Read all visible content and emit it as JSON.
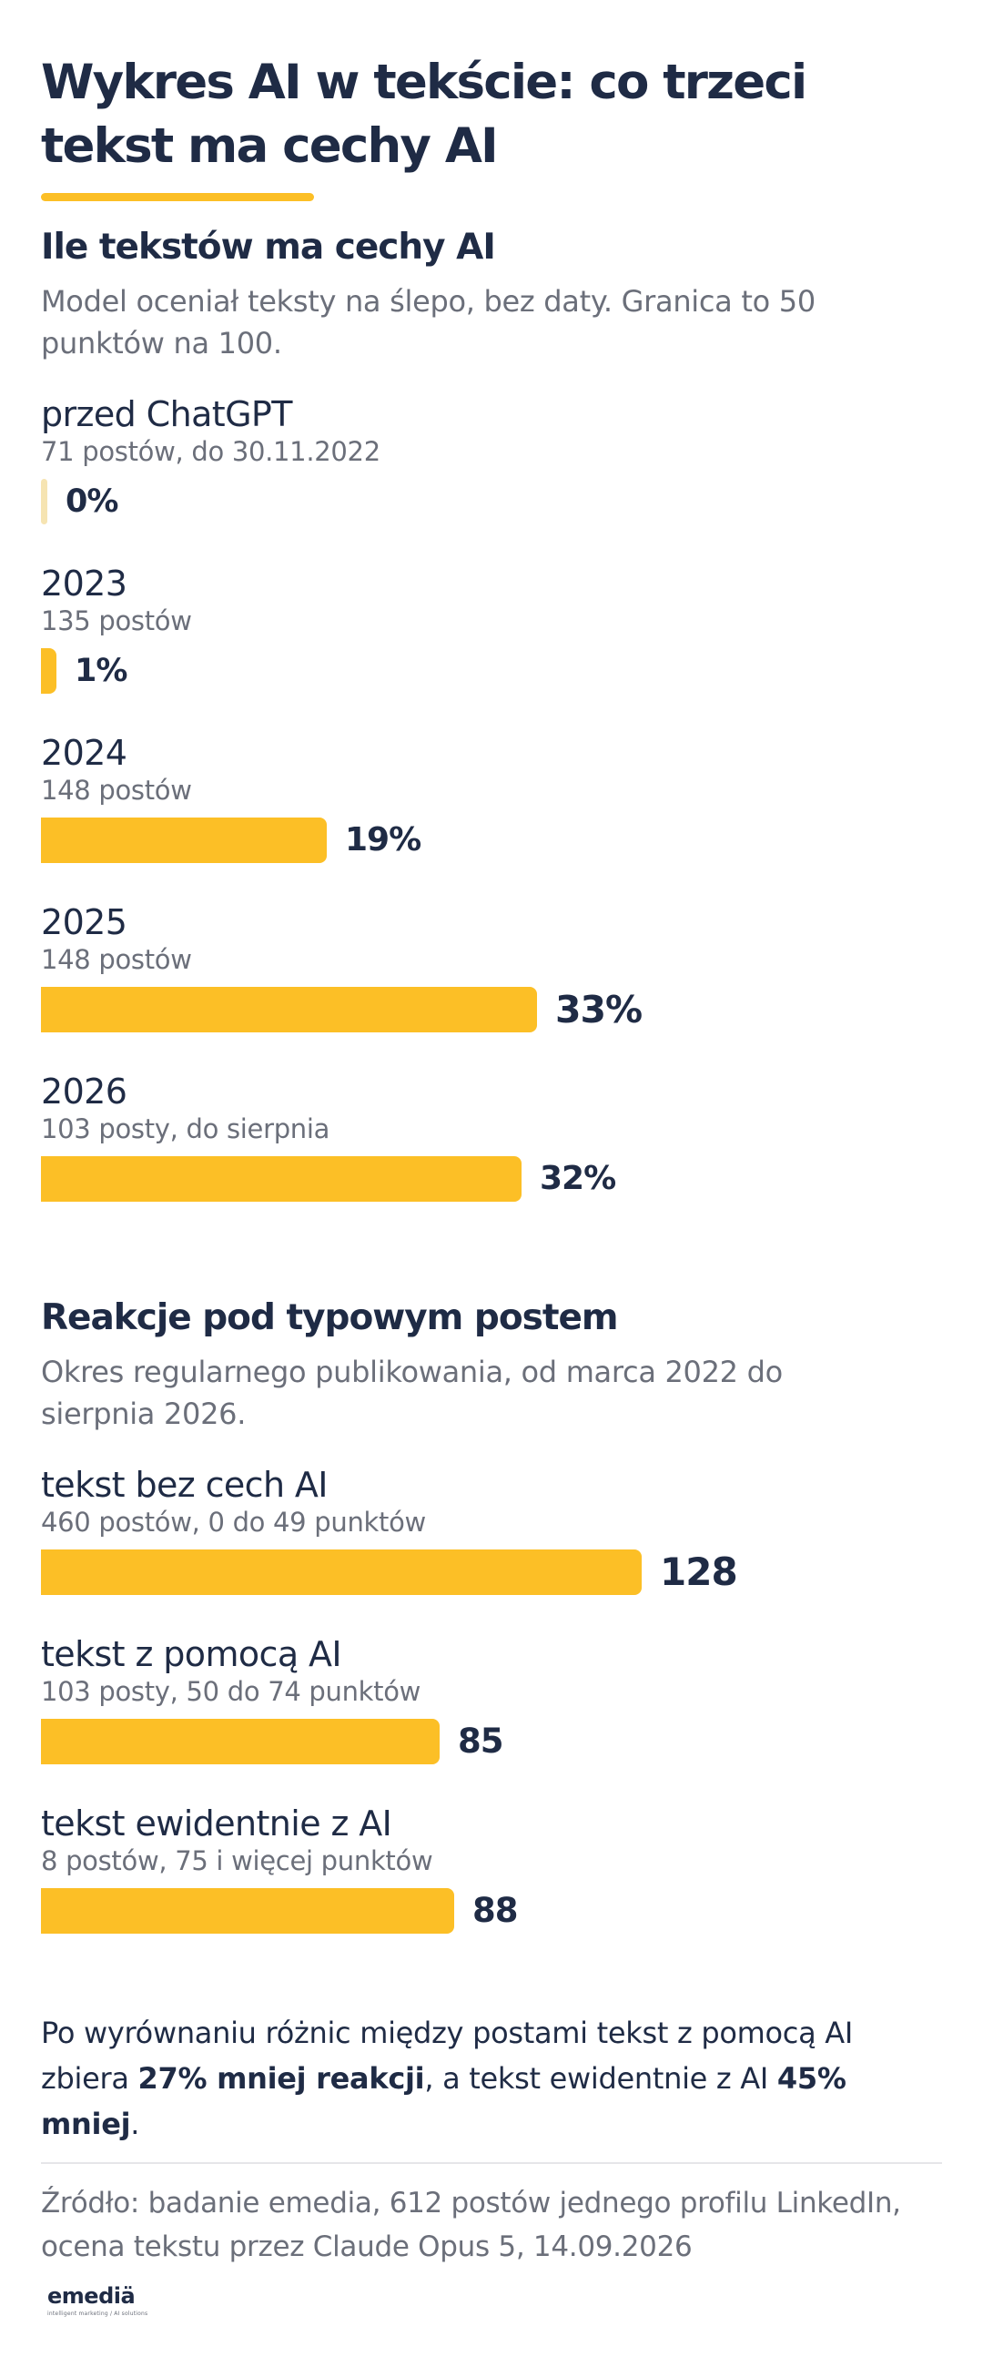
{
  "title": "Wykres AI w tekście: co trzeci tekst ma cechy AI",
  "colors": {
    "bar": "#fcbf26",
    "bar_zero": "#f6e4b2",
    "text": "#1f2b45",
    "muted": "#6b6f7a"
  },
  "chart_data": [
    {
      "type": "bar",
      "orientation": "horizontal",
      "title": "Ile tekstów ma cechy AI",
      "subtitle": "Model oceniał teksty na ślepo, bez daty. Granica to 50 punktów na 100.",
      "categories": [
        "przed ChatGPT",
        "2023",
        "2024",
        "2025",
        "2026"
      ],
      "category_notes": [
        "71 postów, do 30.11.2022",
        "135 postów",
        "148 postów",
        "148 postów",
        "103 posty, do sierpnia"
      ],
      "values": [
        0,
        1,
        19,
        33,
        32
      ],
      "value_labels": [
        "0%",
        "1%",
        "19%",
        "33%",
        "32%"
      ],
      "xlim": [
        0,
        60
      ],
      "grid": false
    },
    {
      "type": "bar",
      "orientation": "horizontal",
      "title": "Reakcje pod typowym postem",
      "subtitle": "Okres regularnego publikowania, od marca 2022 do sierpnia 2026.",
      "categories": [
        "tekst bez cech AI",
        "tekst z pomocą AI",
        "tekst ewidentnie z AI"
      ],
      "category_notes": [
        "460 postów, 0 do 49 punktów",
        "103 posty, 50 do 74 punktów",
        "8 postów, 75 i więcej punktów"
      ],
      "values": [
        128,
        85,
        88
      ],
      "value_labels": [
        "128",
        "85",
        "88"
      ],
      "xlim": [
        0,
        192
      ],
      "grid": false
    }
  ],
  "summary": {
    "part1": "Po wyrównaniu różnic między postami tekst z pomocą AI zbiera ",
    "bold1": "27% mniej reakcji",
    "part2": ", a tekst ewidentnie z AI ",
    "bold2": "45% mniej",
    "part3": "."
  },
  "source": "Źródło: badanie emedia, 612 postów jednego profilu LinkedIn, ocena tekstu przez Claude Opus 5, 14.09.2026",
  "logo": {
    "word": "emediä",
    "tagline": "intelligent marketing / AI solutions"
  }
}
